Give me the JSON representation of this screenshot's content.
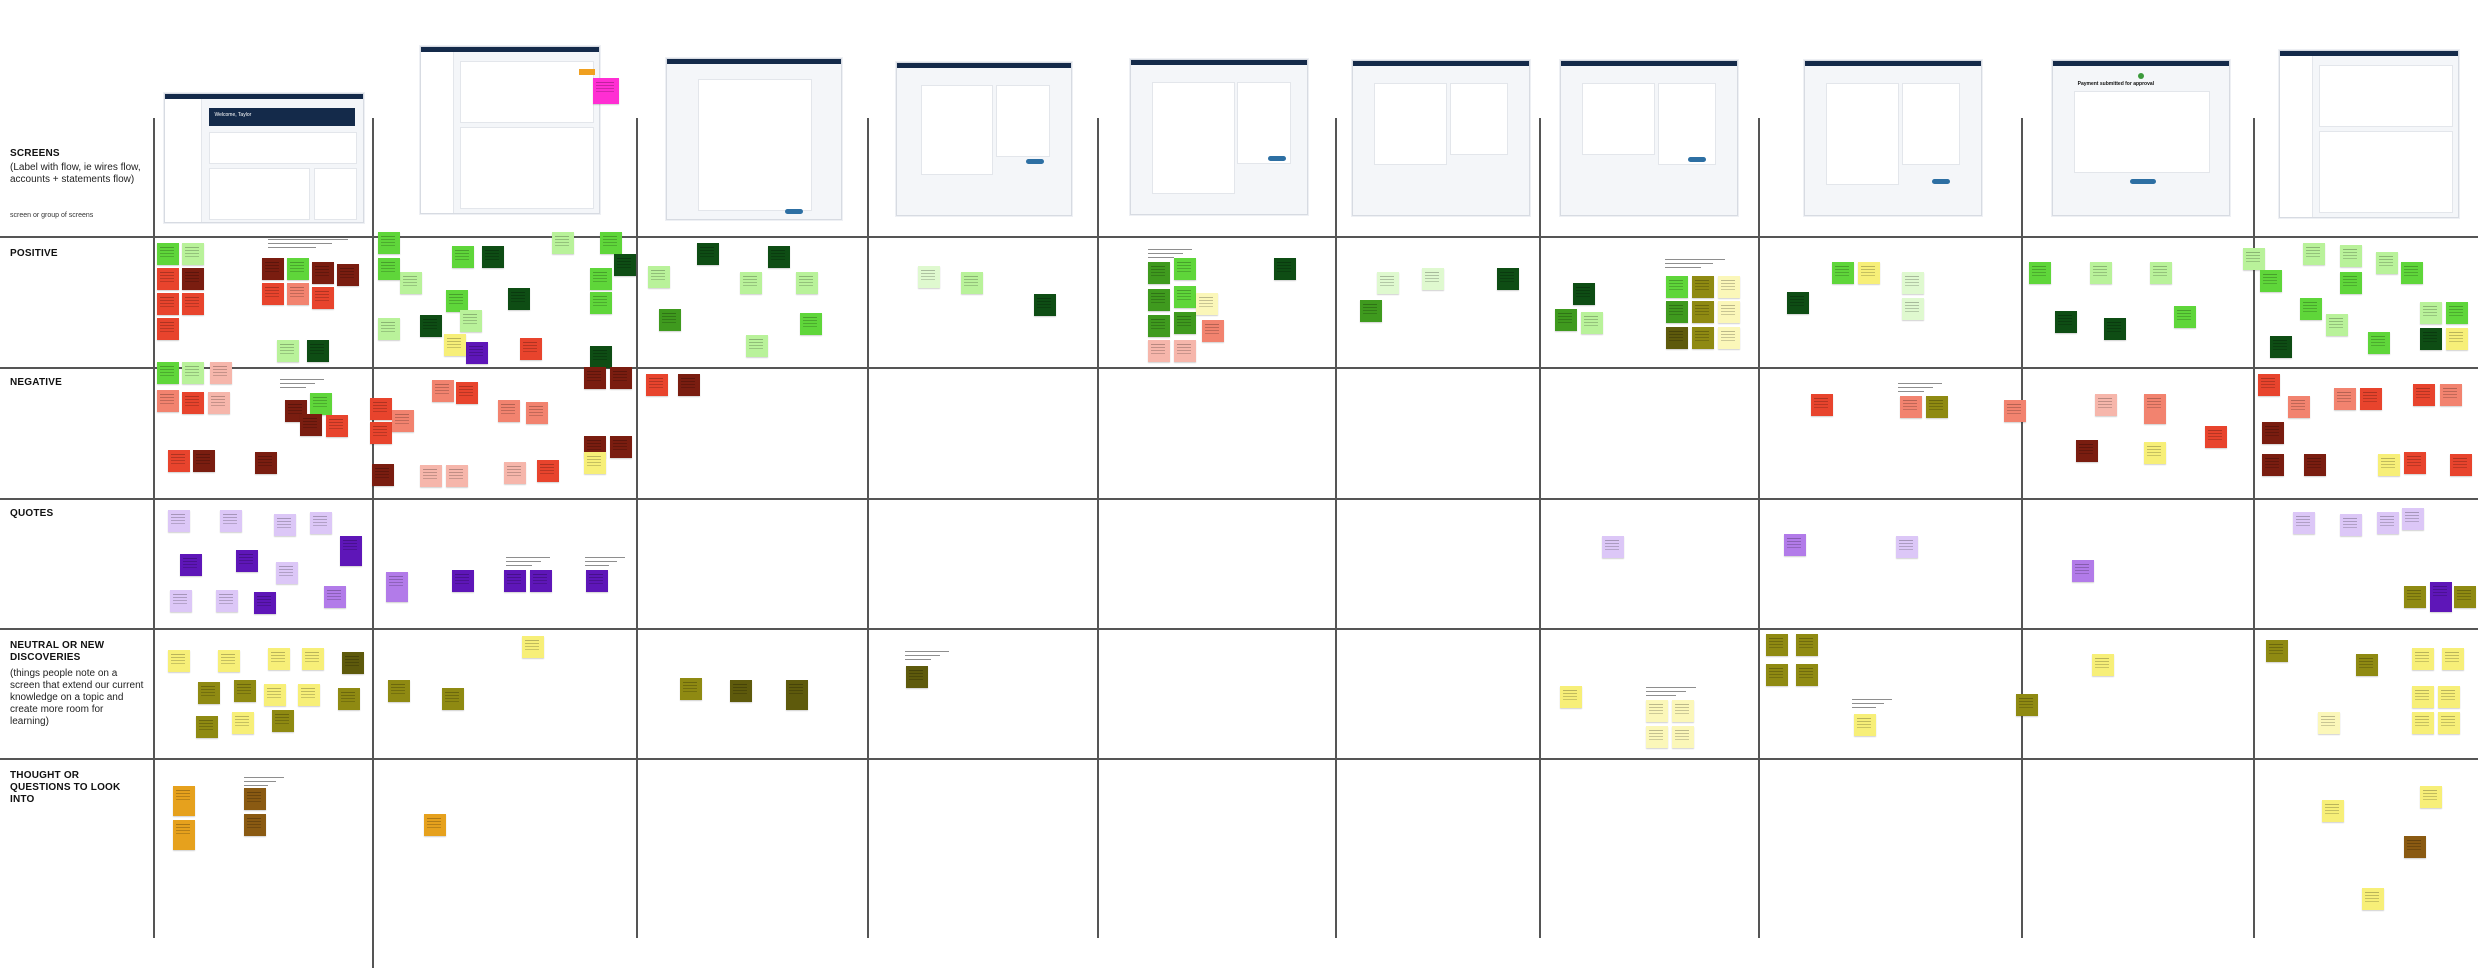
{
  "rows": [
    {
      "key": "screens",
      "title": "SCREENS",
      "description": "(Label with flow, ie wires flow, accounts + statements flow)",
      "sub": "screen or group of screens"
    },
    {
      "key": "positive",
      "title": "POSITIVE",
      "description": ""
    },
    {
      "key": "negative",
      "title": "NEGATIVE",
      "description": ""
    },
    {
      "key": "quotes",
      "title": "QUOTES",
      "description": ""
    },
    {
      "key": "neutral",
      "title": "NEUTRAL OR NEW DISCOVERIES",
      "description": "(things people note on a screen that extend our current knowledge on a topic and create more room for learning)"
    },
    {
      "key": "thought",
      "title": "THOUGHT OR QUESTIONS TO LOOK INTO",
      "description": ""
    }
  ],
  "screens_header": {
    "frame_1_title": "Welcome, Taylor",
    "frame_9_title": "Payment submitted for approval"
  },
  "colors": {
    "positive_light": "#b9f29a",
    "positive": "#5fd63a",
    "positive_dark": "#0e4d14",
    "negative": "#e8442d",
    "negative_light": "#f6b6ab",
    "negative_dark": "#7a1d10",
    "quote": "#dcc7f7",
    "quote_dark": "#5e16b8",
    "neutral": "#f7ef78",
    "neutral_dark": "#8f8a12",
    "thought": "#e6a11d",
    "navbar": "#142a4a",
    "accent": "#2d6fa3"
  }
}
